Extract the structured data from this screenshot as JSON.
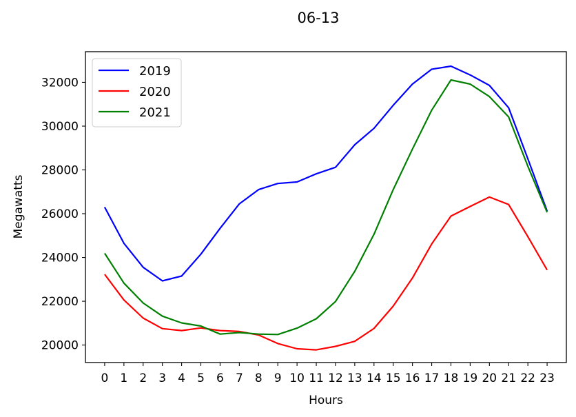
{
  "chart_data": {
    "type": "line",
    "title": "06-13",
    "xlabel": "Hours",
    "ylabel": "Megawatts",
    "x": [
      0,
      1,
      2,
      3,
      4,
      5,
      6,
      7,
      8,
      9,
      10,
      11,
      12,
      13,
      14,
      15,
      16,
      17,
      18,
      19,
      20,
      21,
      22,
      23
    ],
    "x_tick_labels": [
      "0",
      "1",
      "2",
      "3",
      "4",
      "5",
      "6",
      "7",
      "8",
      "9",
      "10",
      "11",
      "12",
      "13",
      "14",
      "15",
      "16",
      "17",
      "18",
      "19",
      "20",
      "21",
      "22",
      "23"
    ],
    "y_ticks": [
      20000,
      22000,
      24000,
      26000,
      28000,
      30000,
      32000
    ],
    "y_tick_labels": [
      "20000",
      "22000",
      "24000",
      "26000",
      "28000",
      "30000",
      "32000"
    ],
    "xlim": [
      -1.0,
      24.0
    ],
    "ylim": [
      19200,
      33400
    ],
    "grid": false,
    "legend_position": "upper-left",
    "series": [
      {
        "name": "2019",
        "color": "#0000ff",
        "values": [
          26300,
          24650,
          23550,
          22930,
          23150,
          24150,
          25330,
          26450,
          27100,
          27380,
          27450,
          27820,
          28120,
          29150,
          29900,
          30950,
          31920,
          32600,
          32740,
          32340,
          31860,
          30840,
          28500,
          26120
        ]
      },
      {
        "name": "2020",
        "color": "#ff0000",
        "values": [
          23230,
          22060,
          21230,
          20750,
          20660,
          20780,
          20660,
          20620,
          20460,
          20070,
          19830,
          19780,
          19940,
          20170,
          20760,
          21780,
          23060,
          24620,
          25890,
          26330,
          26760,
          26420,
          24950,
          23430
        ]
      },
      {
        "name": "2021",
        "color": "#008000",
        "values": [
          24190,
          22830,
          21920,
          21320,
          21010,
          20870,
          20500,
          20570,
          20500,
          20480,
          20770,
          21200,
          21990,
          23370,
          25060,
          27100,
          28950,
          30730,
          32110,
          31920,
          31350,
          30420,
          28160,
          26060
        ]
      }
    ]
  }
}
